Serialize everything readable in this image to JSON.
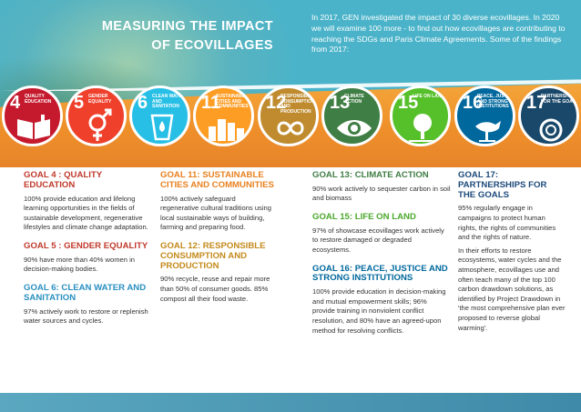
{
  "header": {
    "title_line1": "MEASURING THE IMPACT",
    "title_line2": "OF ECOVILLAGES",
    "intro": "In 2017, GEN investigated the impact of 30 diverse ecovillages. In 2020 we will examine 100 more - to find out how ecovillages are contributing to reaching the SDGs and Paris Climate Agreements. Some of the findings from 2017:"
  },
  "sdg_icons": [
    {
      "num": "4",
      "label": "QUALITY EDUCATION",
      "color": "#c5192d",
      "icon": "book-pencil-icon"
    },
    {
      "num": "5",
      "label": "GENDER EQUALITY",
      "color": "#ef402c",
      "icon": "gender-icon"
    },
    {
      "num": "6",
      "label": "CLEAN WATER AND SANITATION",
      "color": "#27bfe6",
      "icon": "water-drop-icon"
    },
    {
      "num": "11",
      "label": "SUSTAINABLE CITIES AND COMMUNITIES",
      "color": "#fd9d24",
      "icon": "city-icon"
    },
    {
      "num": "12",
      "label": "RESPONSIBLE CONSUMPTION AND PRODUCTION",
      "color": "#bf8b2e",
      "icon": "infinity-icon"
    },
    {
      "num": "13",
      "label": "CLIMATE ACTION",
      "color": "#3f7e44",
      "icon": "eye-globe-icon"
    },
    {
      "num": "15",
      "label": "LIFE ON LAND",
      "color": "#56c02b",
      "icon": "tree-icon"
    },
    {
      "num": "16",
      "label": "PEACE, JUSTICE AND STRONG INSTITUTIONS",
      "color": "#00689d",
      "icon": "dove-icon"
    },
    {
      "num": "17",
      "label": "PARTNERSHIPS FOR THE GOALS",
      "color": "#19486a",
      "icon": "rings-icon"
    }
  ],
  "col1": {
    "g4_title": "GOAL 4 : QUALITY EDUCATION",
    "g4_text": "100% provide education and lifelong learning opportunities in the fields of sustainable development, regenerative lifestyles and climate change adaptation.",
    "g5_title": "GOAL 5 : GENDER EQUALITY",
    "g5_text": "90% have more than 40% women in decision-making bodies.",
    "g6_title": "GOAL 6: CLEAN WATER AND SANITATION",
    "g6_text": "97% actively work to restore or replenish water sources and cycles."
  },
  "col2": {
    "g11_title": "GOAL 11: SUSTAINABLE CITIES AND COMMUNITIES",
    "g11_text": "100% actively safeguard regenerative cultural traditions using local sustainable ways of building, farming and preparing food.",
    "g12_title": "GOAL 12: RESPONSIBLE CONSUMPTION AND PRODUCTION",
    "g12_text": "90% recycle, reuse and repair more than 50% of consumer goods. 85% compost all their food waste."
  },
  "col3": {
    "g13_title": "GOAL 13: CLIMATE ACTION",
    "g13_text": "90% work actively to sequester carbon in soil and biomass",
    "g15_title": "GOAL 15: LIFE ON LAND",
    "g15_text": "97% of showcase ecovillages work actively to restore damaged or degraded ecosystems.",
    "g16_title": "GOAL 16: PEACE, JUSTICE AND STRONG INSTITUTIONS",
    "g16_text": "100% provide education in decision-making and mutual empowerment skills; 96% provide training in nonviolent conflict resolution, and 80% have an agreed-upon method for resolving conflicts."
  },
  "col4": {
    "g17_title": "GOAL 17: PARTNERSHIPS FOR THE GOALS",
    "g17_text1": "95% regularly engage in campaigns to protect human rights, the rights of communities and the rights of nature.",
    "g17_text2": "In their efforts to restore ecosystems, water cycles and the atmosphere, ecovillages use and often teach many of the top 100 carbon drawdown solutions, as identified by Project Drawdown in 'the most comprehensive plan ever proposed to reverse global warming'."
  }
}
